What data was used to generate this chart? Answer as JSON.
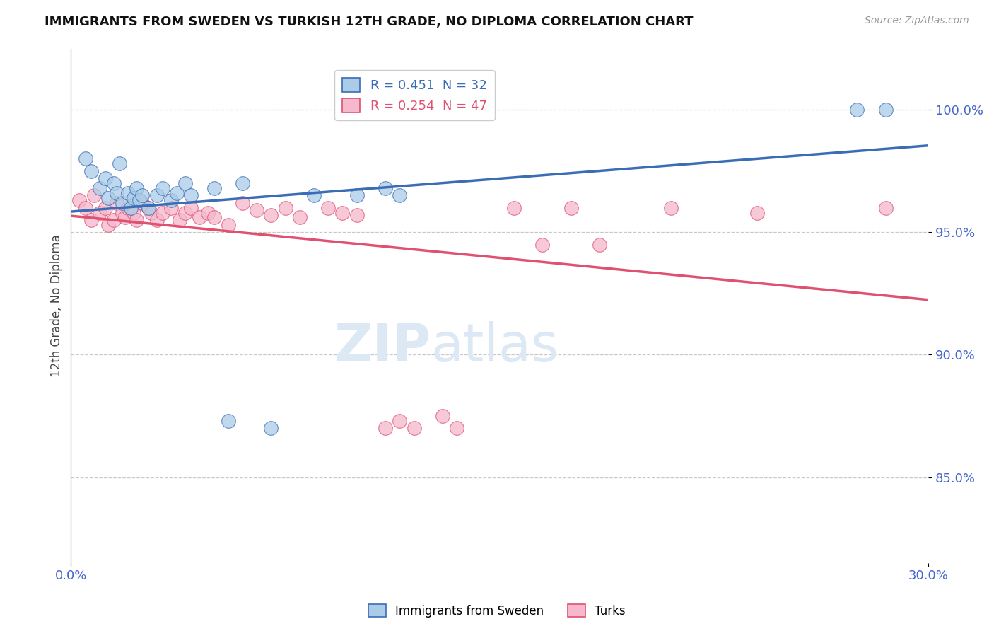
{
  "title": "IMMIGRANTS FROM SWEDEN VS TURKISH 12TH GRADE, NO DIPLOMA CORRELATION CHART",
  "source_text": "Source: ZipAtlas.com",
  "ylabel": "12th Grade, No Diploma",
  "xlim": [
    0.0,
    0.3
  ],
  "ylim": [
    0.815,
    1.025
  ],
  "yticks": [
    0.85,
    0.9,
    0.95,
    1.0
  ],
  "ytick_labels": [
    "85.0%",
    "90.0%",
    "95.0%",
    "100.0%"
  ],
  "xticks": [
    0.0,
    0.3
  ],
  "xtick_labels": [
    "0.0%",
    "30.0%"
  ],
  "blue_R": 0.451,
  "blue_N": 32,
  "pink_R": 0.254,
  "pink_N": 47,
  "blue_color": "#aacce8",
  "pink_color": "#f5b8cc",
  "blue_line_color": "#3a6db5",
  "pink_line_color": "#e05070",
  "legend_label_blue": "Immigrants from Sweden",
  "legend_label_pink": "Turks",
  "blue_x": [
    0.005,
    0.007,
    0.01,
    0.012,
    0.013,
    0.015,
    0.016,
    0.017,
    0.018,
    0.02,
    0.021,
    0.022,
    0.023,
    0.024,
    0.025,
    0.027,
    0.03,
    0.032,
    0.035,
    0.037,
    0.04,
    0.042,
    0.05,
    0.055,
    0.06,
    0.07,
    0.085,
    0.1,
    0.11,
    0.115,
    0.275,
    0.285
  ],
  "blue_y": [
    0.98,
    0.975,
    0.968,
    0.972,
    0.964,
    0.97,
    0.966,
    0.978,
    0.962,
    0.966,
    0.96,
    0.964,
    0.968,
    0.963,
    0.965,
    0.96,
    0.965,
    0.968,
    0.963,
    0.966,
    0.97,
    0.965,
    0.968,
    0.873,
    0.97,
    0.87,
    0.965,
    0.965,
    0.968,
    0.965,
    1.0,
    1.0
  ],
  "pink_x": [
    0.003,
    0.005,
    0.007,
    0.008,
    0.01,
    0.012,
    0.013,
    0.015,
    0.016,
    0.018,
    0.019,
    0.02,
    0.022,
    0.023,
    0.025,
    0.027,
    0.028,
    0.03,
    0.032,
    0.035,
    0.038,
    0.04,
    0.042,
    0.045,
    0.048,
    0.05,
    0.055,
    0.06,
    0.065,
    0.07,
    0.075,
    0.08,
    0.09,
    0.095,
    0.1,
    0.11,
    0.115,
    0.12,
    0.13,
    0.135,
    0.155,
    0.165,
    0.175,
    0.185,
    0.21,
    0.24,
    0.285
  ],
  "pink_y": [
    0.963,
    0.96,
    0.955,
    0.965,
    0.958,
    0.96,
    0.953,
    0.955,
    0.962,
    0.958,
    0.956,
    0.96,
    0.958,
    0.955,
    0.962,
    0.96,
    0.958,
    0.955,
    0.958,
    0.96,
    0.955,
    0.958,
    0.96,
    0.956,
    0.958,
    0.956,
    0.953,
    0.962,
    0.959,
    0.957,
    0.96,
    0.956,
    0.96,
    0.958,
    0.957,
    0.87,
    0.873,
    0.87,
    0.875,
    0.87,
    0.96,
    0.945,
    0.96,
    0.945,
    0.96,
    0.958,
    0.96
  ]
}
